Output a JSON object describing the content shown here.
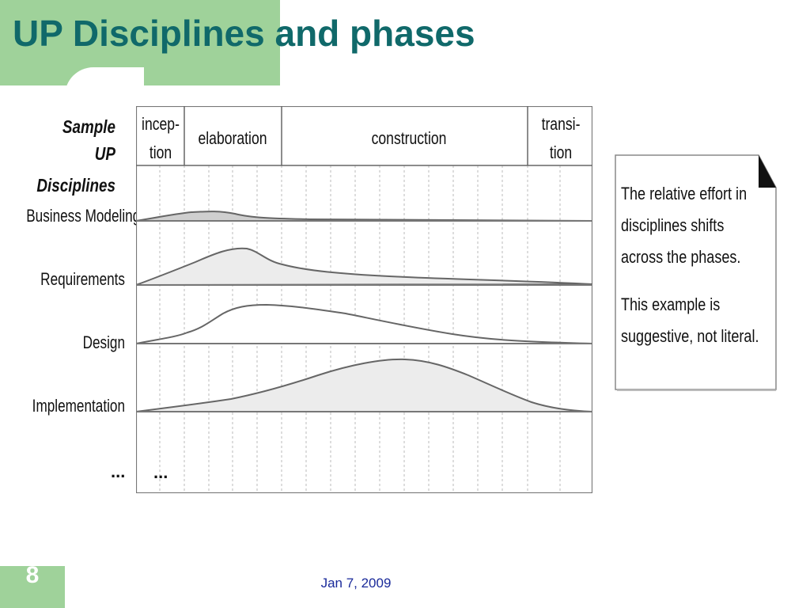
{
  "slide": {
    "title": "UP Disciplines and phases",
    "number": "8",
    "date": "Jan 7, 2009"
  },
  "diagram": {
    "legend_title_line1": "Sample",
    "legend_title_line2": "UP Disciplines",
    "phases": [
      "incep-\ntion",
      "elaboration",
      "construction",
      "transi-\ntion"
    ],
    "phase_lines": [
      [
        "incep-",
        "tion"
      ],
      [
        "elaboration"
      ],
      [
        "construction"
      ],
      [
        "transi-",
        "tion"
      ]
    ],
    "disciplines": [
      "Business Modeling",
      "Requirements",
      "Design",
      "Implementation",
      "..."
    ],
    "more_marker": "...",
    "colors": {
      "line": "#555555",
      "fill": "#e8e8e8",
      "grid": "#bbbbbb"
    }
  },
  "note": {
    "paragraph1": [
      "The relative effort in",
      "disciplines shifts",
      "across the phases."
    ],
    "paragraph2": [
      "This example is",
      "suggestive, not literal."
    ]
  }
}
